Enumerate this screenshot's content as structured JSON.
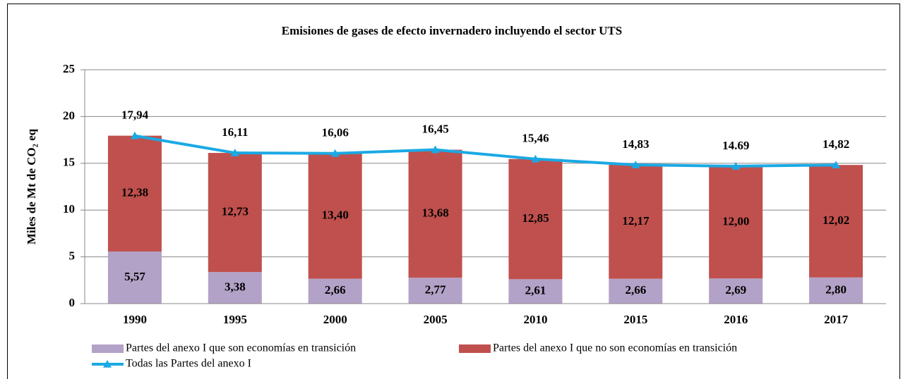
{
  "chart_data": {
    "type": "stacked-bar-line",
    "title": "Emisiones de gases de efecto invernadero incluyendo el sector UTS",
    "ylabel": "Miles de Mt de CO₂ eq",
    "categories": [
      "1990",
      "1995",
      "2000",
      "2005",
      "2010",
      "2015",
      "2016",
      "2017"
    ],
    "ylim": [
      0,
      25
    ],
    "yticks": [
      0,
      5,
      10,
      15,
      20,
      25
    ],
    "grid": true,
    "series": [
      {
        "name": "Partes del anexo I que son economías en transición",
        "type": "bar",
        "color": "#b3a2c7",
        "values": [
          5.57,
          3.38,
          2.66,
          2.77,
          2.61,
          2.66,
          2.69,
          2.8
        ],
        "value_labels": [
          "5,57",
          "3,38",
          "2,66",
          "2,77",
          "2,61",
          "2,66",
          "2,69",
          "2,80"
        ]
      },
      {
        "name": "Partes del anexo I que no son economías en transición",
        "type": "bar",
        "color": "#c0504d",
        "values": [
          12.38,
          12.73,
          13.4,
          13.68,
          12.85,
          12.17,
          12.0,
          12.02
        ],
        "value_labels": [
          "12,38",
          "12,73",
          "13,40",
          "13,68",
          "12,85",
          "12,17",
          "12,00",
          "12,02"
        ]
      },
      {
        "name": "Todas las Partes del anexo I",
        "type": "line",
        "color": "#1aa9e4",
        "values": [
          17.94,
          16.11,
          16.06,
          16.45,
          15.46,
          14.83,
          14.69,
          14.82
        ],
        "value_labels": [
          "17,94",
          "16,11",
          "16,06",
          "16,45",
          "15,46",
          "14,83",
          "14.69",
          "14,82"
        ]
      }
    ]
  }
}
